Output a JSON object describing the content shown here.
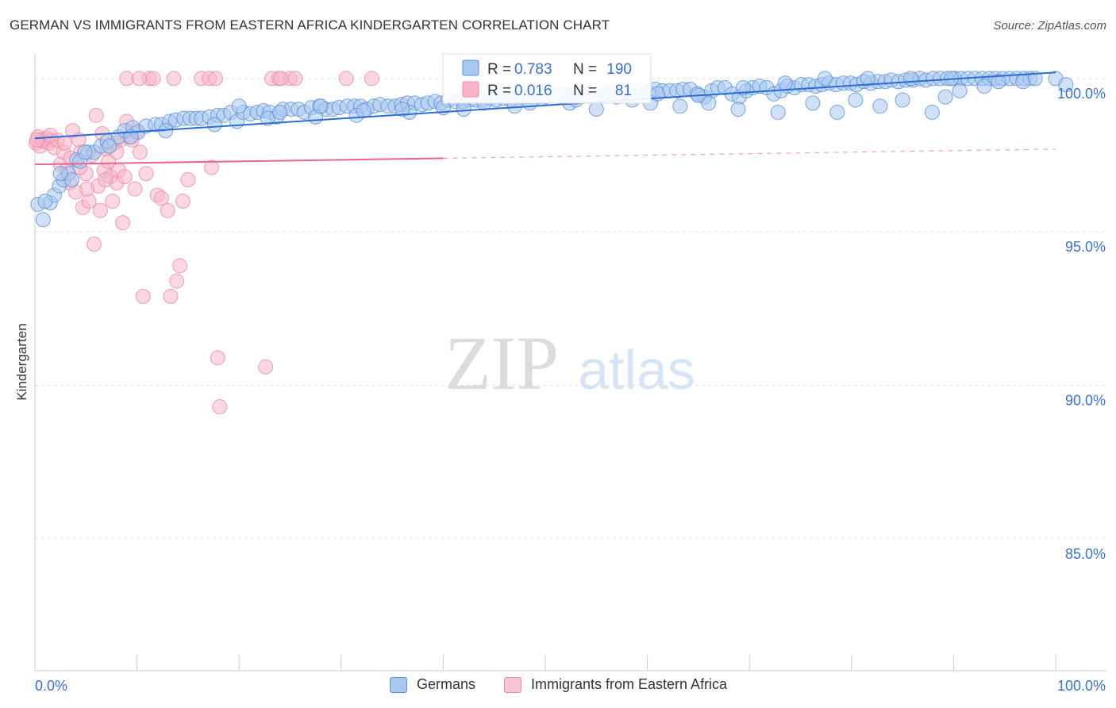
{
  "header": {
    "title": "GERMAN VS IMMIGRANTS FROM EASTERN AFRICA KINDERGARTEN CORRELATION CHART",
    "source": "Source: ZipAtlas.com"
  },
  "watermark": {
    "zip": "ZIP",
    "atlas": "atlas"
  },
  "colors": {
    "blue_fill": "#a9c8f0",
    "blue_stroke": "#5b8fd6",
    "blue_line": "#2a6dd6",
    "pink_fill": "#f7b6c8",
    "pink_stroke": "#e98aa8",
    "pink_line": "#e8658f",
    "axis_text": "#3a72c8",
    "grid": "#e4e4e4"
  },
  "stats_legend": {
    "germans": {
      "r_label": "R = ",
      "r_value": "0.783",
      "n_label": "N = ",
      "n_value": "190"
    },
    "eastern_africa": {
      "r_label": "R = ",
      "r_value": "0.016",
      "n_label": "N = ",
      "n_value": "81"
    }
  },
  "chart_data": {
    "type": "scatter",
    "title": "GERMAN VS IMMIGRANTS FROM EASTERN AFRICA KINDERGARTEN CORRELATION CHART",
    "xlabel": "",
    "ylabel": "Kindergarten",
    "xlim": [
      0,
      100
    ],
    "ylim": [
      80.7,
      100.8
    ],
    "x_tick_labels": [
      "0.0%",
      "100.0%"
    ],
    "y_ticks": [
      85,
      90,
      95,
      100
    ],
    "y_tick_labels": [
      "85.0%",
      "90.0%",
      "95.0%",
      "100.0%"
    ],
    "grid": true,
    "legend": [
      "Germans",
      "Immigrants from Eastern Africa"
    ],
    "series": [
      {
        "name": "Germans",
        "r": 0.783,
        "n": 190,
        "trend": {
          "x": [
            0,
            100
          ],
          "y": [
            98.05,
            100.2
          ],
          "solid_until": 100
        },
        "points": [
          [
            0.3,
            95.9
          ],
          [
            0.8,
            95.4
          ],
          [
            1.5,
            95.95
          ],
          [
            1.9,
            96.2
          ],
          [
            2.4,
            96.5
          ],
          [
            2.8,
            96.7
          ],
          [
            3.3,
            96.9
          ],
          [
            3.6,
            96.7
          ],
          [
            4.1,
            97.35
          ],
          [
            4.4,
            97.3
          ],
          [
            5.2,
            97.6
          ],
          [
            5.8,
            97.6
          ],
          [
            6.5,
            97.8
          ],
          [
            7.1,
            97.95
          ],
          [
            8.2,
            98.1
          ],
          [
            8.8,
            98.3
          ],
          [
            9.6,
            98.4
          ],
          [
            10.1,
            98.25
          ],
          [
            10.9,
            98.45
          ],
          [
            11.8,
            98.5
          ],
          [
            12.4,
            98.5
          ],
          [
            13.2,
            98.6
          ],
          [
            13.8,
            98.65
          ],
          [
            14.6,
            98.7
          ],
          [
            15.2,
            98.7
          ],
          [
            15.8,
            98.7
          ],
          [
            16.3,
            98.7
          ],
          [
            17.1,
            98.75
          ],
          [
            17.9,
            98.8
          ],
          [
            18.5,
            98.8
          ],
          [
            19.2,
            98.9
          ],
          [
            19.8,
            98.6
          ],
          [
            20.4,
            98.9
          ],
          [
            21.1,
            98.85
          ],
          [
            21.8,
            98.9
          ],
          [
            22.4,
            98.95
          ],
          [
            23.0,
            98.9
          ],
          [
            23.7,
            98.75
          ],
          [
            24.3,
            99.0
          ],
          [
            25.1,
            99.0
          ],
          [
            25.8,
            99.0
          ],
          [
            26.4,
            98.9
          ],
          [
            27.1,
            99.05
          ],
          [
            27.9,
            99.1
          ],
          [
            28.5,
            99.0
          ],
          [
            29.2,
            99.0
          ],
          [
            29.8,
            99.05
          ],
          [
            30.6,
            99.1
          ],
          [
            31.3,
            99.1
          ],
          [
            31.9,
            99.1
          ],
          [
            32.5,
            99.0
          ],
          [
            33.2,
            99.1
          ],
          [
            33.8,
            99.15
          ],
          [
            34.6,
            99.1
          ],
          [
            35.3,
            99.1
          ],
          [
            35.9,
            99.15
          ],
          [
            36.5,
            99.2
          ],
          [
            37.2,
            99.2
          ],
          [
            37.9,
            99.15
          ],
          [
            38.5,
            99.2
          ],
          [
            39.2,
            99.25
          ],
          [
            39.8,
            99.2
          ],
          [
            40.5,
            99.3
          ],
          [
            41.2,
            99.25
          ],
          [
            41.9,
            99.25
          ],
          [
            42.6,
            99.3
          ],
          [
            43.2,
            99.3
          ],
          [
            43.9,
            99.3
          ],
          [
            44.6,
            99.35
          ],
          [
            45.2,
            99.3
          ],
          [
            45.9,
            99.35
          ],
          [
            46.6,
            99.3
          ],
          [
            47.3,
            99.4
          ],
          [
            48.0,
            99.4
          ],
          [
            48.6,
            99.4
          ],
          [
            49.3,
            99.4
          ],
          [
            50.0,
            99.4
          ],
          [
            50.7,
            99.45
          ],
          [
            51.3,
            99.45
          ],
          [
            52.0,
            99.45
          ],
          [
            52.7,
            99.5
          ],
          [
            53.4,
            99.5
          ],
          [
            54.0,
            99.5
          ],
          [
            54.7,
            99.55
          ],
          [
            55.4,
            99.5
          ],
          [
            56.1,
            99.55
          ],
          [
            56.8,
            99.6
          ],
          [
            57.4,
            99.55
          ],
          [
            58.1,
            99.6
          ],
          [
            58.8,
            99.6
          ],
          [
            59.5,
            99.6
          ],
          [
            60.1,
            99.55
          ],
          [
            60.8,
            99.65
          ],
          [
            61.5,
            99.6
          ],
          [
            62.2,
            99.6
          ],
          [
            62.9,
            99.6
          ],
          [
            63.5,
            99.65
          ],
          [
            64.2,
            99.65
          ],
          [
            64.9,
            99.5
          ],
          [
            65.6,
            99.4
          ],
          [
            66.3,
            99.6
          ],
          [
            66.9,
            99.7
          ],
          [
            67.6,
            99.7
          ],
          [
            68.3,
            99.5
          ],
          [
            69.0,
            99.4
          ],
          [
            69.7,
            99.6
          ],
          [
            70.3,
            99.7
          ],
          [
            71.0,
            99.75
          ],
          [
            71.7,
            99.7
          ],
          [
            72.4,
            99.5
          ],
          [
            73.1,
            99.6
          ],
          [
            73.7,
            99.75
          ],
          [
            74.4,
            99.7
          ],
          [
            75.1,
            99.8
          ],
          [
            75.8,
            99.8
          ],
          [
            76.5,
            99.75
          ],
          [
            77.1,
            99.8
          ],
          [
            77.8,
            99.85
          ],
          [
            78.5,
            99.8
          ],
          [
            79.2,
            99.85
          ],
          [
            79.9,
            99.85
          ],
          [
            80.5,
            99.8
          ],
          [
            81.2,
            99.9
          ],
          [
            81.9,
            99.85
          ],
          [
            82.6,
            99.9
          ],
          [
            83.3,
            99.9
          ],
          [
            83.9,
            99.95
          ],
          [
            84.6,
            99.9
          ],
          [
            85.3,
            99.95
          ],
          [
            86.0,
            99.95
          ],
          [
            86.7,
            100.0
          ],
          [
            87.3,
            99.95
          ],
          [
            88.0,
            100.0
          ],
          [
            88.7,
            100.0
          ],
          [
            89.4,
            100.0
          ],
          [
            90.1,
            100.0
          ],
          [
            90.7,
            100.0
          ],
          [
            91.4,
            100.0
          ],
          [
            92.1,
            100.0
          ],
          [
            92.8,
            100.0
          ],
          [
            93.5,
            100.0
          ],
          [
            94.1,
            100.0
          ],
          [
            94.8,
            100.0
          ],
          [
            95.5,
            100.0
          ],
          [
            96.2,
            100.0
          ],
          [
            96.9,
            100.0
          ],
          [
            97.5,
            100.0
          ],
          [
            55.0,
            99.0
          ],
          [
            60.3,
            99.2
          ],
          [
            63.2,
            99.1
          ],
          [
            68.9,
            99.0
          ],
          [
            72.8,
            98.9
          ],
          [
            76.2,
            99.2
          ],
          [
            80.4,
            99.3
          ],
          [
            82.8,
            99.1
          ],
          [
            87.9,
            98.9
          ],
          [
            89.2,
            99.4
          ],
          [
            90.6,
            99.6
          ],
          [
            93.0,
            99.75
          ],
          [
            100.0,
            100.0
          ],
          [
            101.0,
            99.8
          ],
          [
            96.8,
            99.9
          ],
          [
            85.0,
            99.3
          ],
          [
            78.6,
            98.9
          ],
          [
            66.0,
            99.2
          ],
          [
            58.5,
            99.3
          ],
          [
            52.4,
            99.2
          ],
          [
            47.0,
            99.1
          ],
          [
            42.0,
            99.0
          ],
          [
            36.7,
            98.9
          ],
          [
            31.5,
            98.8
          ],
          [
            27.5,
            98.75
          ],
          [
            22.8,
            98.7
          ],
          [
            17.6,
            98.5
          ],
          [
            12.8,
            98.3
          ],
          [
            9.4,
            98.1
          ],
          [
            7.3,
            97.8
          ],
          [
            4.9,
            97.6
          ],
          [
            2.5,
            96.9
          ],
          [
            1.0,
            96.0
          ],
          [
            20.0,
            99.1
          ],
          [
            24.0,
            98.9
          ],
          [
            28.0,
            99.1
          ],
          [
            32.2,
            98.95
          ],
          [
            36.0,
            99.0
          ],
          [
            40.0,
            99.05
          ],
          [
            44.0,
            99.2
          ],
          [
            48.5,
            99.2
          ],
          [
            53.0,
            99.3
          ],
          [
            57.0,
            99.4
          ],
          [
            61.0,
            99.5
          ],
          [
            65.0,
            99.45
          ],
          [
            69.4,
            99.7
          ],
          [
            73.5,
            99.85
          ],
          [
            77.4,
            100.0
          ],
          [
            81.6,
            100.0
          ],
          [
            85.8,
            100.0
          ],
          [
            89.8,
            100.0
          ],
          [
            94.4,
            99.9
          ],
          [
            98.0,
            100.0
          ]
        ]
      },
      {
        "name": "Immigrants from Eastern Africa",
        "r": 0.016,
        "n": 81,
        "trend": {
          "x": [
            0,
            100
          ],
          "y": [
            97.2,
            97.7
          ],
          "solid_until": 40
        },
        "points": [
          [
            0.1,
            97.9
          ],
          [
            0.3,
            98.1
          ],
          [
            0.5,
            97.8
          ],
          [
            0.7,
            98.0
          ],
          [
            0.9,
            97.95
          ],
          [
            1.1,
            98.05
          ],
          [
            1.4,
            97.9
          ],
          [
            1.6,
            98.0
          ],
          [
            1.9,
            97.75
          ],
          [
            2.2,
            98.0
          ],
          [
            2.5,
            97.2
          ],
          [
            2.8,
            97.6
          ],
          [
            3.1,
            97.0
          ],
          [
            3.4,
            96.6
          ],
          [
            3.7,
            98.3
          ],
          [
            4.0,
            96.3
          ],
          [
            4.3,
            98.0
          ],
          [
            4.5,
            97.6
          ],
          [
            4.7,
            95.8
          ],
          [
            5.0,
            96.9
          ],
          [
            5.3,
            96.0
          ],
          [
            5.6,
            97.5
          ],
          [
            5.8,
            94.6
          ],
          [
            6.0,
            98.8
          ],
          [
            6.2,
            96.5
          ],
          [
            6.4,
            95.7
          ],
          [
            6.6,
            98.2
          ],
          [
            6.8,
            97.0
          ],
          [
            7.0,
            97.7
          ],
          [
            7.2,
            97.3
          ],
          [
            7.4,
            96.8
          ],
          [
            7.6,
            96.0
          ],
          [
            7.8,
            97.9
          ],
          [
            8.0,
            96.6
          ],
          [
            8.2,
            97.0
          ],
          [
            8.4,
            98.0
          ],
          [
            8.6,
            95.3
          ],
          [
            8.8,
            96.8
          ],
          [
            9.0,
            98.6
          ],
          [
            9.2,
            98.1
          ],
          [
            9.5,
            98.0
          ],
          [
            9.8,
            96.4
          ],
          [
            10.0,
            98.3
          ],
          [
            10.3,
            97.6
          ],
          [
            10.6,
            92.9
          ],
          [
            10.9,
            96.9
          ],
          [
            11.2,
            100.0
          ],
          [
            11.6,
            100.0
          ],
          [
            12.0,
            96.2
          ],
          [
            12.4,
            96.1
          ],
          [
            13.0,
            95.7
          ],
          [
            13.3,
            92.9
          ],
          [
            13.6,
            100.0
          ],
          [
            13.9,
            93.4
          ],
          [
            14.2,
            93.9
          ],
          [
            14.5,
            96.0
          ],
          [
            15.0,
            96.7
          ],
          [
            16.3,
            100.0
          ],
          [
            17.1,
            100.0
          ],
          [
            17.3,
            97.1
          ],
          [
            17.9,
            90.9
          ],
          [
            18.1,
            89.3
          ],
          [
            22.6,
            90.6
          ],
          [
            23.2,
            100.0
          ],
          [
            23.9,
            100.0
          ],
          [
            25.0,
            100.0
          ],
          [
            25.5,
            100.0
          ],
          [
            30.5,
            100.0
          ],
          [
            33.0,
            100.0
          ],
          [
            9.0,
            100.0
          ],
          [
            10.2,
            100.0
          ],
          [
            17.7,
            100.0
          ],
          [
            24.1,
            100.0
          ],
          [
            1.5,
            98.15
          ],
          [
            2.9,
            97.9
          ],
          [
            3.5,
            97.4
          ],
          [
            5.1,
            96.4
          ],
          [
            6.9,
            96.7
          ],
          [
            8.0,
            97.6
          ],
          [
            4.4,
            97.1
          ],
          [
            0.2,
            98.0
          ]
        ]
      }
    ]
  },
  "bottom_legend": {
    "germans": "Germans",
    "eastern_africa": "Immigrants from Eastern Africa"
  }
}
